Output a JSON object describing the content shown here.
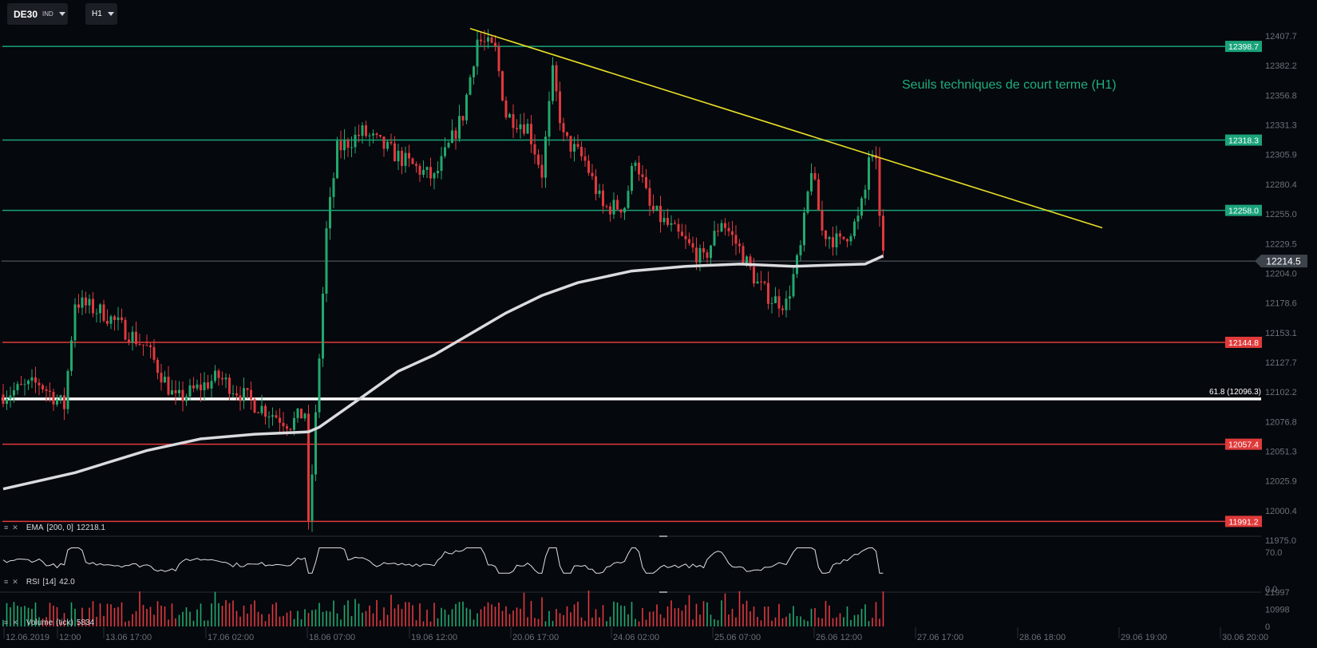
{
  "toolbar": {
    "symbol": "DE30",
    "symbol_tag": "IND",
    "timeframe": "H1"
  },
  "colors": {
    "background": "#05080d",
    "resistance": "#1aa37a",
    "support": "#e03a3a",
    "trendline": "#e9e027",
    "ema": "#d9dbde",
    "fib_line": "#ffffff",
    "candle_up": "#22a86e",
    "candle_down": "#e0393e",
    "annotation": "#1fae7c",
    "price_marker": "#3d434b"
  },
  "chart_data": {
    "type": "candlestick",
    "title": "Seuils techniques de court terme (H1)",
    "y_axis": {
      "range": [
        11975.0,
        12420.0
      ],
      "ticks": [
        "12407.7",
        "12382.2",
        "12356.8",
        "12331.3",
        "12305.9",
        "12280.4",
        "12255.0",
        "12229.5",
        "12204.0",
        "12178.6",
        "12153.1",
        "12127.7",
        "12102.2",
        "12076.8",
        "12051.3",
        "12025.9",
        "12000.4",
        "11975.0"
      ]
    },
    "x_axis": {
      "ticks": [
        "12.06.2019",
        "12:00",
        "13.06 17:00",
        "17.06 02:00",
        "18.06 07:00",
        "19.06 12:00",
        "20.06 17:00",
        "24.06 02:00",
        "25.06 07:00",
        "26.06 12:00",
        "27.06 17:00",
        "28.06 18:00",
        "29.06 19:00",
        "30.06 20:00"
      ]
    },
    "resistance_levels": [
      {
        "value": 12398.7,
        "label": "12398.7"
      },
      {
        "value": 12318.3,
        "label": "12318.3"
      },
      {
        "value": 12258.0,
        "label": "12258.0"
      }
    ],
    "support_levels": [
      {
        "value": 12144.8,
        "label": "12144.8"
      },
      {
        "value": 12057.4,
        "label": "12057.4"
      },
      {
        "value": 11991.2,
        "label": "11991.2"
      }
    ],
    "fibonacci": {
      "value": 12096.3,
      "label": "61.8 (12096.3)"
    },
    "current_price": {
      "value": 12214.5,
      "label": "12214.5"
    },
    "trendline": [
      {
        "bar": 130,
        "price": 12414
      },
      {
        "bar": 306,
        "price": 12243
      }
    ],
    "ema_200_path": [
      [
        0,
        12019
      ],
      [
        20,
        12033
      ],
      [
        40,
        12052
      ],
      [
        55,
        12062
      ],
      [
        70,
        12066
      ],
      [
        85,
        12068
      ],
      [
        88,
        12072
      ],
      [
        100,
        12098
      ],
      [
        110,
        12120
      ],
      [
        120,
        12134
      ],
      [
        130,
        12152
      ],
      [
        140,
        12170
      ],
      [
        150,
        12185
      ],
      [
        160,
        12196
      ],
      [
        175,
        12206
      ],
      [
        190,
        12210
      ],
      [
        205,
        12212
      ],
      [
        220,
        12210
      ],
      [
        230,
        12211
      ],
      [
        240,
        12212
      ],
      [
        245,
        12219
      ]
    ],
    "price_path": [
      [
        0,
        12100
      ],
      [
        10,
        12110
      ],
      [
        17,
        12090
      ],
      [
        20,
        12180
      ],
      [
        28,
        12170
      ],
      [
        40,
        12140
      ],
      [
        48,
        12095
      ],
      [
        60,
        12115
      ],
      [
        70,
        12092
      ],
      [
        80,
        12075
      ],
      [
        84,
        12085
      ],
      [
        85,
        11985
      ],
      [
        87,
        12080
      ],
      [
        90,
        12240
      ],
      [
        93,
        12310
      ],
      [
        100,
        12325
      ],
      [
        112,
        12300
      ],
      [
        120,
        12285
      ],
      [
        128,
        12340
      ],
      [
        132,
        12405
      ],
      [
        137,
        12395
      ],
      [
        140,
        12340
      ],
      [
        146,
        12330
      ],
      [
        150,
        12290
      ],
      [
        153,
        12375
      ],
      [
        156,
        12320
      ],
      [
        162,
        12300
      ],
      [
        167,
        12260
      ],
      [
        173,
        12262
      ],
      [
        176,
        12305
      ],
      [
        180,
        12260
      ],
      [
        190,
        12230
      ],
      [
        195,
        12215
      ],
      [
        200,
        12250
      ],
      [
        205,
        12225
      ],
      [
        210,
        12195
      ],
      [
        214,
        12182
      ],
      [
        218,
        12178
      ],
      [
        222,
        12225
      ],
      [
        225,
        12295
      ],
      [
        228,
        12240
      ],
      [
        233,
        12230
      ],
      [
        238,
        12250
      ],
      [
        240,
        12275
      ],
      [
        241,
        12305
      ],
      [
        243,
        12295
      ],
      [
        245,
        12220
      ]
    ],
    "indicators": [
      {
        "name": "EMA",
        "params": "[200, 0]",
        "value": "12218.1"
      },
      {
        "name": "RSI",
        "params": "[14]",
        "value": "42.0",
        "axis_ticks": [
          "70.0",
          "0.0"
        ]
      },
      {
        "name": "Volume",
        "params": "(tick)",
        "value": "5834",
        "axis_ticks": [
          "21997",
          "10998",
          "0"
        ]
      }
    ]
  },
  "icons": {
    "indicator_menu": "menu-lines-icon",
    "indicator_close": "close-icon",
    "dropdown": "chevron-down-icon"
  }
}
